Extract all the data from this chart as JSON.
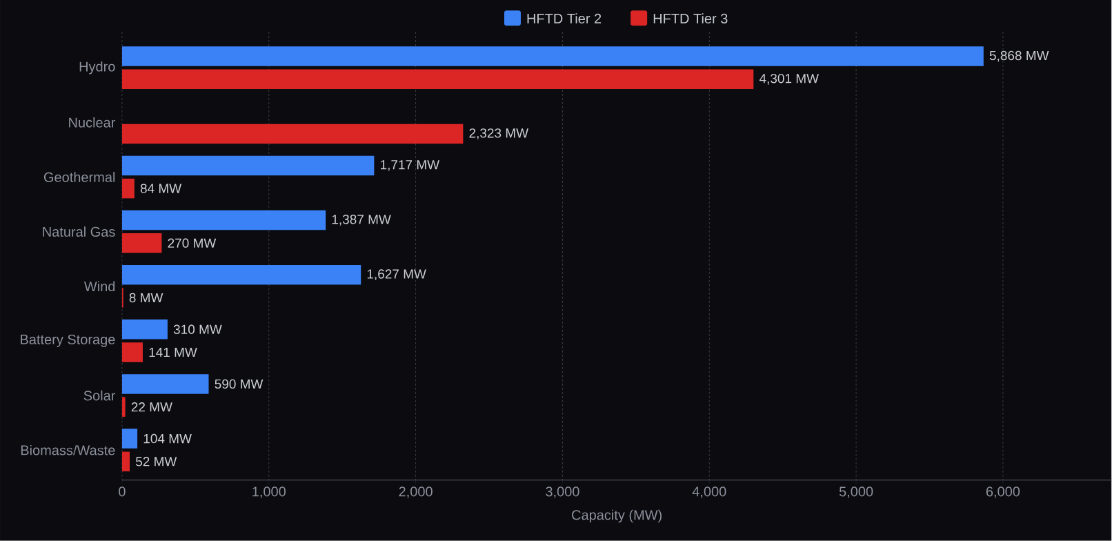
{
  "chart_data": {
    "type": "bar",
    "orientation": "horizontal",
    "xlabel": "Capacity (MW)",
    "categories": [
      "Hydro",
      "Nuclear",
      "Geothermal",
      "Natural Gas",
      "Wind",
      "Battery Storage",
      "Solar",
      "Biomass/Waste"
    ],
    "series": [
      {
        "name": "HFTD Tier 2",
        "color": "#3b82f6",
        "values": [
          5868,
          null,
          1717,
          1387,
          1627,
          310,
          590,
          104
        ],
        "value_labels": [
          "5,868 MW",
          null,
          "1,717 MW",
          "1,387 MW",
          "1,627 MW",
          "310 MW",
          "590 MW",
          "104 MW"
        ]
      },
      {
        "name": "HFTD Tier 3",
        "color": "#dc2626",
        "values": [
          4301,
          2323,
          84,
          270,
          8,
          141,
          22,
          52
        ],
        "value_labels": [
          "4,301 MW",
          "2,323 MW",
          "84 MW",
          "270 MW",
          "8 MW",
          "141 MW",
          "22 MW",
          "52 MW"
        ]
      }
    ],
    "xlim": [
      0,
      6740
    ],
    "xticks": [
      {
        "value": 0,
        "label": "0"
      },
      {
        "value": 1000,
        "label": "1,000"
      },
      {
        "value": 2000,
        "label": "2,000"
      },
      {
        "value": 3000,
        "label": "3,000"
      },
      {
        "value": 4000,
        "label": "4,000"
      },
      {
        "value": 5000,
        "label": "5,000"
      },
      {
        "value": 6000,
        "label": "6,000"
      }
    ],
    "grid": "x",
    "legend": "top"
  }
}
